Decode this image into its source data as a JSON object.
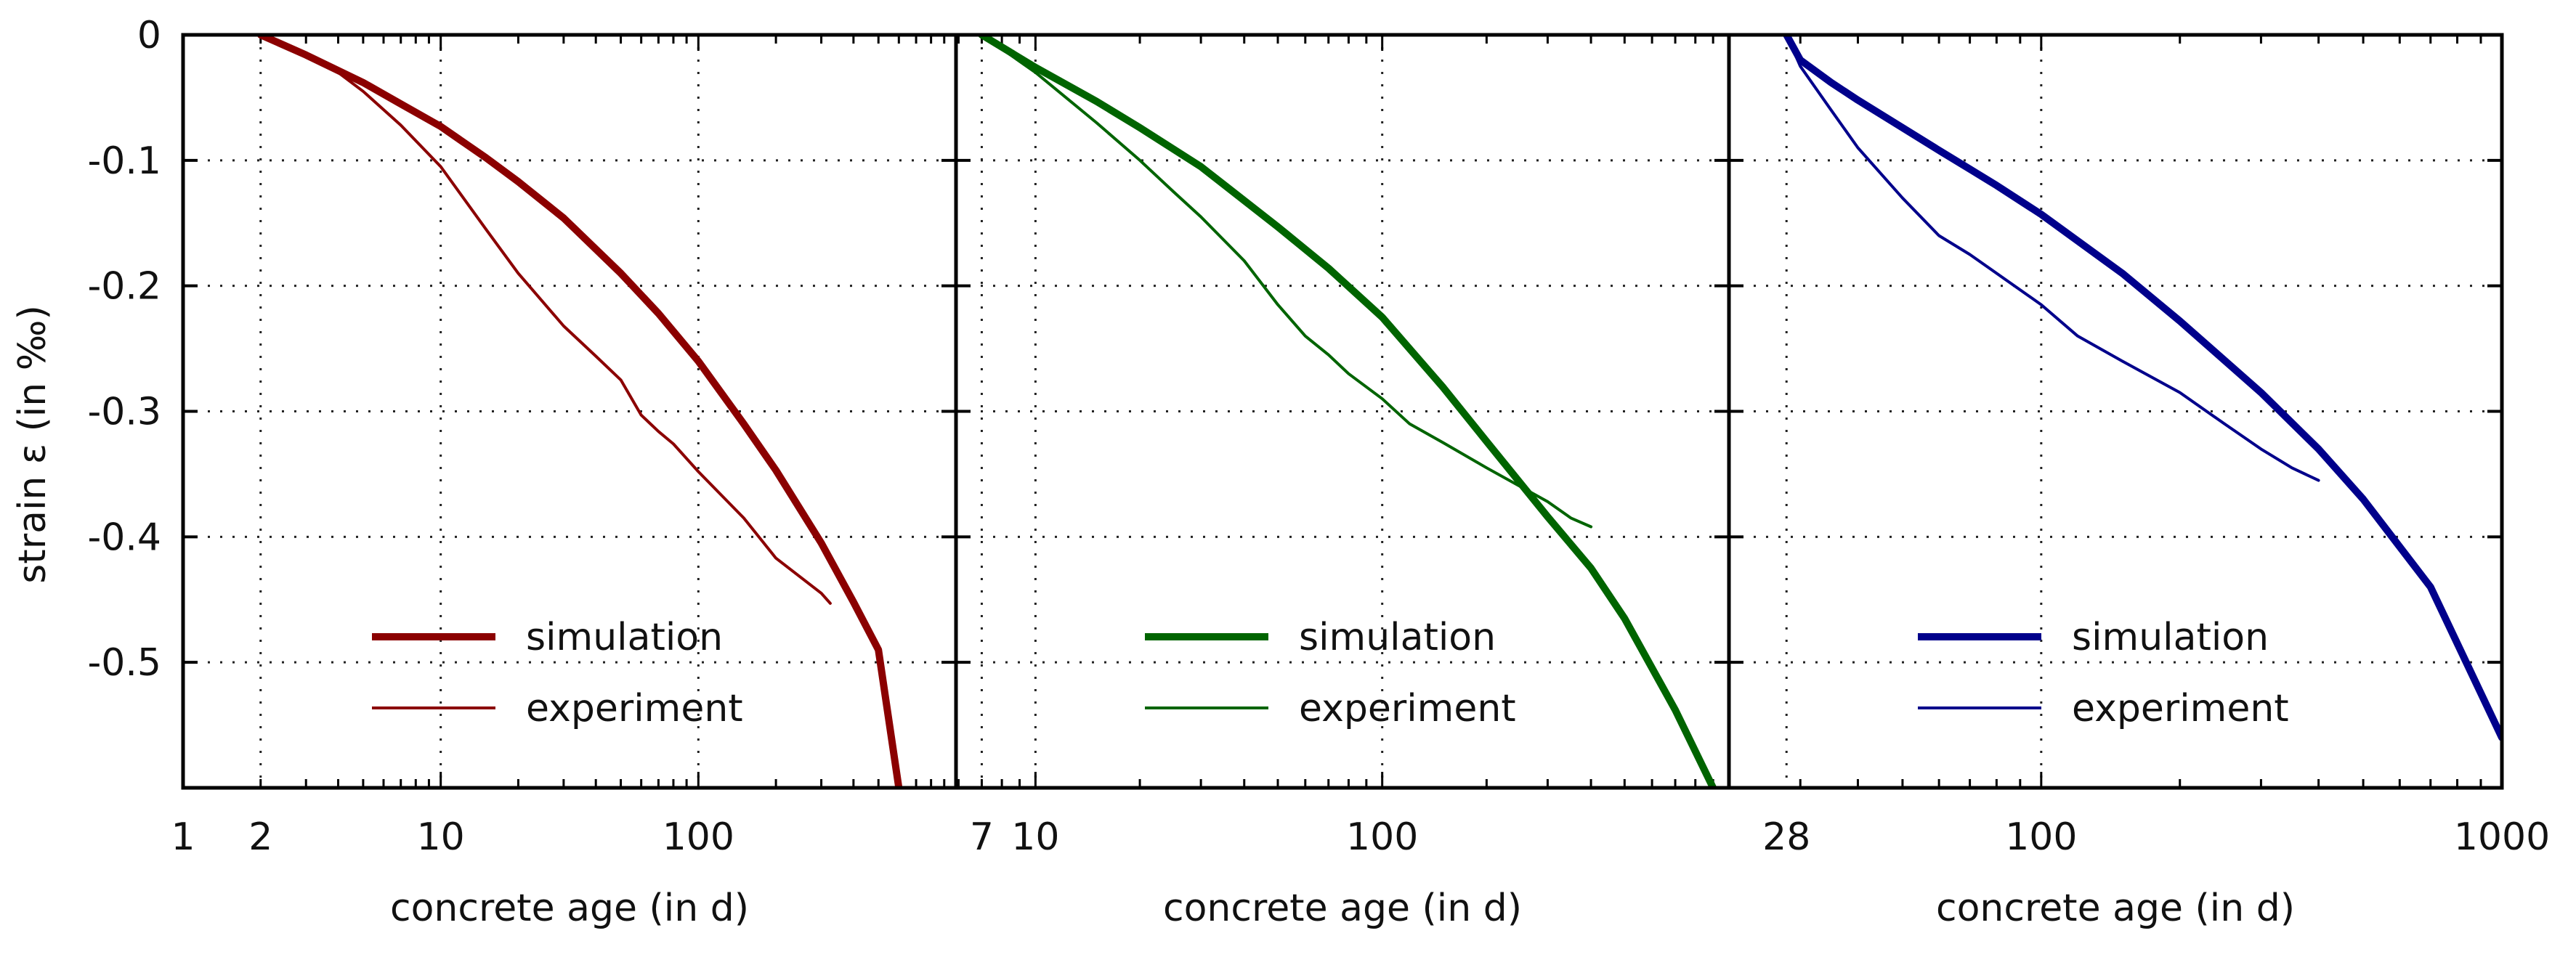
{
  "y_axis": {
    "label": "strain ε (in ‰)",
    "ticks": [
      "0",
      "-0.1",
      "-0.2",
      "-0.3",
      "-0.4",
      "-0.5"
    ],
    "range": [
      0,
      -0.6
    ]
  },
  "chart_data": [
    {
      "type": "line",
      "xlabel": "concrete age (in d)",
      "ylabel": "strain ε (in ‰)",
      "x_scale": "log",
      "xlim": [
        1,
        1000
      ],
      "ylim": [
        -0.6,
        0
      ],
      "x_ticks": [
        {
          "value": 1,
          "label": "1"
        },
        {
          "value": 2,
          "label": "2"
        },
        {
          "value": 10,
          "label": "10"
        },
        {
          "value": 100,
          "label": "100"
        }
      ],
      "x_gridlines": [
        2,
        10,
        100
      ],
      "y_gridlines": [
        -0.1,
        -0.2,
        -0.3,
        -0.4,
        -0.5
      ],
      "color": "#8b0000",
      "legend": {
        "placement": "bottom-center",
        "entries": [
          "simulation",
          "experiment"
        ]
      },
      "series": [
        {
          "name": "simulation",
          "style": "thick",
          "x": [
            2,
            3,
            5,
            7,
            10,
            15,
            20,
            30,
            50,
            70,
            100,
            150,
            200,
            300,
            400,
            500,
            600
          ],
          "y": [
            0,
            -0.016,
            -0.038,
            -0.055,
            -0.073,
            -0.098,
            -0.117,
            -0.146,
            -0.19,
            -0.222,
            -0.26,
            -0.31,
            -0.347,
            -0.405,
            -0.452,
            -0.49,
            -0.6
          ]
        },
        {
          "name": "experiment",
          "style": "thin",
          "x": [
            2,
            3,
            4,
            5,
            7,
            10,
            15,
            20,
            30,
            40,
            50,
            60,
            70,
            80,
            100,
            150,
            200,
            300,
            325
          ],
          "y": [
            0,
            -0.017,
            -0.03,
            -0.045,
            -0.072,
            -0.105,
            -0.155,
            -0.19,
            -0.232,
            -0.256,
            -0.275,
            -0.303,
            -0.316,
            -0.326,
            -0.348,
            -0.385,
            -0.417,
            -0.445,
            -0.453
          ]
        }
      ]
    },
    {
      "type": "line",
      "xlabel": "concrete age (in d)",
      "ylabel": "strain ε (in ‰)",
      "x_scale": "log",
      "xlim": [
        5.9,
        1000
      ],
      "ylim": [
        -0.6,
        0
      ],
      "x_ticks": [
        {
          "value": 7,
          "label": "7"
        },
        {
          "value": 10,
          "label": "10"
        },
        {
          "value": 100,
          "label": "100"
        }
      ],
      "x_gridlines": [
        7,
        10,
        100
      ],
      "y_gridlines": [
        -0.1,
        -0.2,
        -0.3,
        -0.4,
        -0.5
      ],
      "color": "#006400",
      "legend": {
        "placement": "bottom-center",
        "entries": [
          "simulation",
          "experiment"
        ]
      },
      "series": [
        {
          "name": "simulation",
          "style": "thick",
          "x": [
            7,
            10,
            15,
            20,
            30,
            50,
            70,
            100,
            150,
            200,
            300,
            400,
            500,
            700,
            900
          ],
          "y": [
            0,
            -0.026,
            -0.053,
            -0.074,
            -0.105,
            -0.153,
            -0.186,
            -0.225,
            -0.281,
            -0.324,
            -0.384,
            -0.425,
            -0.465,
            -0.538,
            -0.6
          ]
        },
        {
          "name": "experiment",
          "style": "thin",
          "x": [
            7,
            10,
            15,
            20,
            25,
            30,
            40,
            50,
            60,
            70,
            80,
            100,
            120,
            150,
            200,
            300,
            350,
            400
          ],
          "y": [
            0,
            -0.03,
            -0.07,
            -0.1,
            -0.125,
            -0.145,
            -0.18,
            -0.215,
            -0.24,
            -0.255,
            -0.27,
            -0.29,
            -0.31,
            -0.325,
            -0.345,
            -0.372,
            -0.385,
            -0.392
          ]
        }
      ]
    },
    {
      "type": "line",
      "xlabel": "concrete age (in d)",
      "ylabel": "strain ε (in ‰)",
      "x_scale": "log",
      "xlim": [
        21,
        1000
      ],
      "ylim": [
        -0.6,
        0
      ],
      "x_ticks": [
        {
          "value": 28,
          "label": "28"
        },
        {
          "value": 100,
          "label": "100"
        },
        {
          "value": 1000,
          "label": "1000"
        }
      ],
      "x_gridlines": [
        28,
        100
      ],
      "y_gridlines": [
        -0.1,
        -0.2,
        -0.3,
        -0.4,
        -0.5
      ],
      "color": "#00008b",
      "legend": {
        "placement": "bottom-center",
        "entries": [
          "simulation",
          "experiment"
        ]
      },
      "series": [
        {
          "name": "simulation",
          "style": "thick",
          "x": [
            28,
            30,
            35,
            40,
            50,
            60,
            70,
            80,
            100,
            150,
            200,
            300,
            400,
            500,
            700,
            1000
          ],
          "y": [
            0,
            -0.02,
            -0.038,
            -0.052,
            -0.074,
            -0.092,
            -0.107,
            -0.12,
            -0.143,
            -0.19,
            -0.228,
            -0.285,
            -0.33,
            -0.37,
            -0.44,
            -0.56
          ]
        },
        {
          "name": "experiment",
          "style": "thin",
          "x": [
            28,
            30,
            35,
            40,
            50,
            60,
            70,
            80,
            100,
            120,
            150,
            200,
            250,
            300,
            350,
            400
          ],
          "y": [
            0,
            -0.025,
            -0.06,
            -0.09,
            -0.13,
            -0.16,
            -0.175,
            -0.19,
            -0.215,
            -0.24,
            -0.26,
            -0.285,
            -0.31,
            -0.33,
            -0.345,
            -0.355
          ]
        }
      ]
    }
  ]
}
